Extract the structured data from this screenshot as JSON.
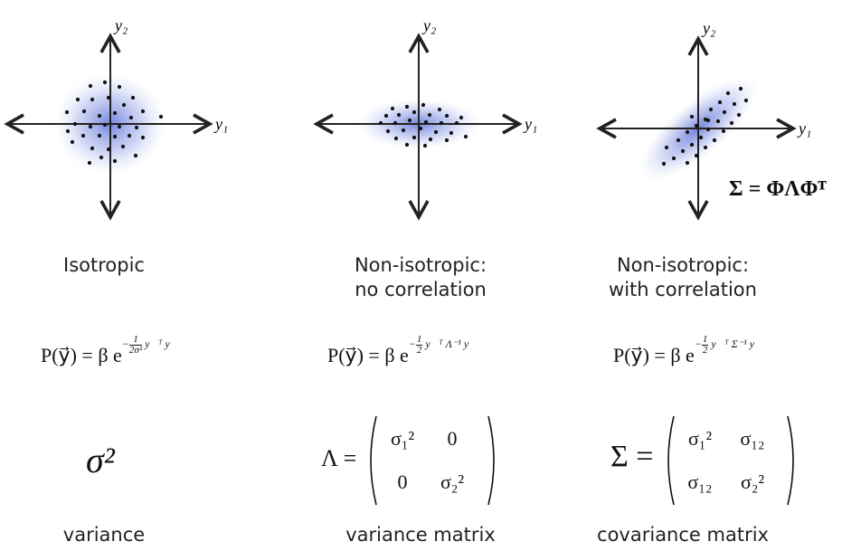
{
  "panels": [
    {
      "caption_lines": [
        "Isotropic"
      ],
      "formula": {
        "lhs": "P(y⃗) = β e",
        "exp_pre": "−",
        "frac_num": "1",
        "frac_den": "2σ²",
        "exp_post": "y⃗ᵀ y⃗"
      },
      "summary_symbol": "σ²",
      "summary_label": "variance"
    },
    {
      "caption_lines": [
        "Non-isotropic:",
        "no correlation"
      ],
      "formula": {
        "lhs": "P(y⃗) = β e",
        "exp_pre": "−",
        "frac_num": "1",
        "frac_den": "2",
        "exp_post": "y⃗ᵀ Λ⁻¹ y⃗"
      },
      "matrix_symbol": "Λ =",
      "matrix": [
        [
          "σ₁²",
          "0"
        ],
        [
          "0",
          "σ₂²"
        ]
      ],
      "summary_label": "variance matrix"
    },
    {
      "caption_lines": [
        "Non-isotropic:",
        "with correlation"
      ],
      "formula": {
        "lhs": "P(y⃗) = β e",
        "exp_pre": "−",
        "frac_num": "1",
        "frac_den": "2",
        "exp_post": "y⃗ᵀ Σ⁻¹ y⃗"
      },
      "decomposition": "Σ  =  ΦΛΦᵀ",
      "matrix_symbol": "Σ =",
      "matrix": [
        [
          "σ₁²",
          "σ₁₂"
        ],
        [
          "σ₁₂",
          "σ₂²"
        ]
      ],
      "summary_label": "covariance matrix"
    }
  ],
  "axes": {
    "x_label": "y₁",
    "y_label": "y₂"
  },
  "colors": {
    "blob": "#5a6fd6",
    "axis": "#222222",
    "point": "#111111"
  }
}
